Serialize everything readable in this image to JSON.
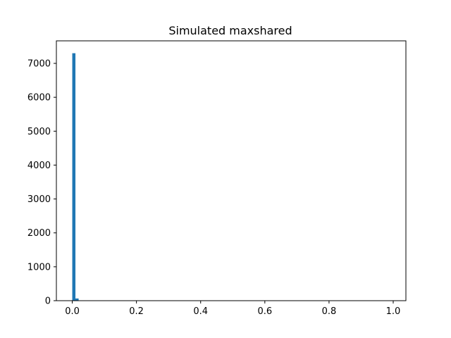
{
  "chart_data": {
    "type": "bar",
    "title": "Simulated maxshared",
    "xlabel": "",
    "ylabel": "",
    "xlim": [
      -0.0495,
      1.0395
    ],
    "ylim": [
      0,
      7665
    ],
    "bin_width": 0.0099,
    "bins": [
      {
        "x0": 0.0,
        "x1": 0.0099,
        "count": 7300
      },
      {
        "x0": 0.0099,
        "x1": 0.0198,
        "count": 65
      }
    ],
    "xticks": [
      {
        "value": 0.0,
        "label": "0.0"
      },
      {
        "value": 0.2,
        "label": "0.2"
      },
      {
        "value": 0.4,
        "label": "0.4"
      },
      {
        "value": 0.6,
        "label": "0.6"
      },
      {
        "value": 0.8,
        "label": "0.8"
      },
      {
        "value": 1.0,
        "label": "1.0"
      }
    ],
    "yticks": [
      {
        "value": 0,
        "label": "0"
      },
      {
        "value": 1000,
        "label": "1000"
      },
      {
        "value": 2000,
        "label": "2000"
      },
      {
        "value": 3000,
        "label": "3000"
      },
      {
        "value": 4000,
        "label": "4000"
      },
      {
        "value": 5000,
        "label": "5000"
      },
      {
        "value": 6000,
        "label": "6000"
      },
      {
        "value": 7000,
        "label": "7000"
      }
    ],
    "grid": false,
    "bar_color": "#1f77b4"
  }
}
